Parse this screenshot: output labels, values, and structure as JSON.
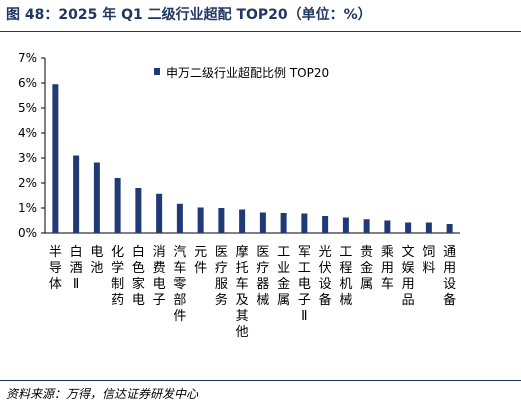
{
  "figure_title": "图 48：2025 年 Q1 二级行业超配 TOP20（单位：%）",
  "source_note": "资料来源：万得，信达证券研发中心",
  "colors": {
    "bar": "#1f3a74",
    "accent": "#1f3763"
  },
  "chart_data": {
    "type": "bar",
    "title": "",
    "xlabel": "",
    "ylabel": "",
    "ylim": [
      0,
      7
    ],
    "yticks": [
      "0%",
      "1%",
      "2%",
      "3%",
      "4%",
      "5%",
      "6%",
      "7%"
    ],
    "grid": false,
    "legend_position": "top",
    "categories": [
      "半导体",
      "白酒Ⅱ",
      "电池",
      "化学制药",
      "白色家电",
      "消费电子",
      "汽车零部件",
      "元件",
      "医疗服务",
      "摩托车及其他",
      "医疗器械",
      "工业金属",
      "军工电子Ⅱ",
      "光伏设备",
      "工程机械",
      "贵金属",
      "乘用车",
      "文娱用品",
      "饲料",
      "通用设备"
    ],
    "series": [
      {
        "name": "申万二级行业超配比例 TOP20",
        "values": [
          5.95,
          3.1,
          2.82,
          2.2,
          1.8,
          1.57,
          1.17,
          1.02,
          1.0,
          0.94,
          0.82,
          0.8,
          0.78,
          0.68,
          0.62,
          0.55,
          0.5,
          0.42,
          0.42,
          0.36
        ]
      }
    ]
  }
}
